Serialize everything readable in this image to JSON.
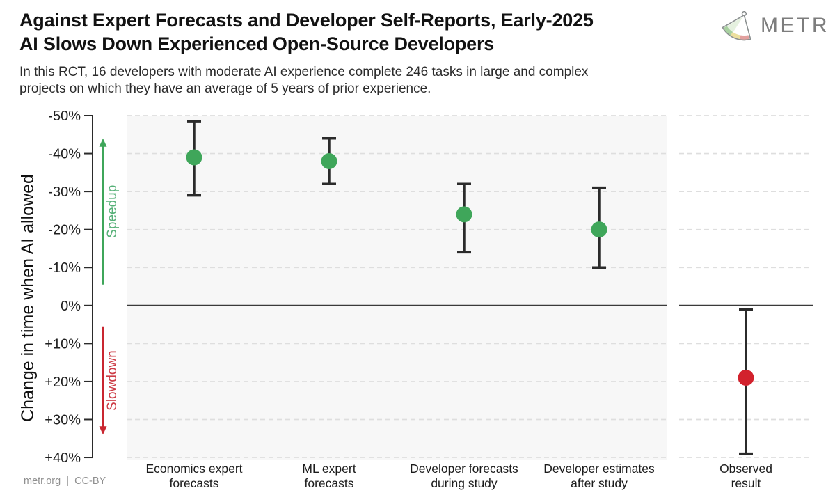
{
  "header": {
    "title_lines": [
      "Against Expert Forecasts and Developer Self-Reports, Early-2025",
      "AI Slows Down Experienced Open-Source Developers"
    ],
    "subtitle_lines": [
      "In this RCT, 16 developers with moderate AI experience complete 246 tasks in large and complex",
      "projects on which they have an average of 5 years of prior experience."
    ],
    "logo_text": "METR"
  },
  "footer": {
    "credit": "metr.org  |  CC-BY"
  },
  "colors": {
    "green": "#3fa65a",
    "red": "#d2222d",
    "speedup_text": "#55b077",
    "slowdown_text": "#cd3d47",
    "errorbar": "#2b2b2b",
    "panel_bg": "#f7f7f7",
    "gridline": "#dedede",
    "zero_line": "#3a3a3a"
  },
  "chart_data": {
    "type": "scatter",
    "title": "",
    "ylabel": "Change in time when AI allowed",
    "xlabel": "",
    "y_axis": {
      "inverted": true,
      "ylim": [
        -50,
        40
      ],
      "grid": true,
      "ticks": [
        {
          "label": "-50%",
          "value": -50
        },
        {
          "label": "-40%",
          "value": -40
        },
        {
          "label": "-30%",
          "value": -30
        },
        {
          "label": "-20%",
          "value": -20
        },
        {
          "label": "-10%",
          "value": -10
        },
        {
          "label": "0%",
          "value": 0
        },
        {
          "label": "+10%",
          "value": 10
        },
        {
          "label": "+20%",
          "value": 20
        },
        {
          "label": "+30%",
          "value": 30
        },
        {
          "label": "+40%",
          "value": 40
        }
      ]
    },
    "panels": [
      {
        "id": "forecasts",
        "bg": "#f7f7f7"
      },
      {
        "id": "observed",
        "bg": "#ffffff"
      }
    ],
    "annotations": [
      {
        "id": "speedup",
        "label": "Speedup",
        "direction": "up",
        "from": -5.5,
        "to": -44,
        "color": "#3fa65a",
        "text_color": "#55b077"
      },
      {
        "id": "slowdown",
        "label": "Slowdown",
        "direction": "down",
        "from": 5.5,
        "to": 34,
        "color": "#c92630",
        "text_color": "#cd3d47"
      }
    ],
    "points": [
      {
        "panel": 0,
        "label_lines": [
          "Economics expert",
          "forecasts"
        ],
        "value": -39,
        "ci": [
          -48.5,
          -29
        ],
        "color": "#3fa65a"
      },
      {
        "panel": 0,
        "label_lines": [
          "ML expert",
          "forecasts"
        ],
        "value": -38,
        "ci": [
          -44,
          -32
        ],
        "color": "#3fa65a"
      },
      {
        "panel": 0,
        "label_lines": [
          "Developer forecasts",
          "during study"
        ],
        "value": -24,
        "ci": [
          -32,
          -14
        ],
        "color": "#3fa65a"
      },
      {
        "panel": 0,
        "label_lines": [
          "Developer estimates",
          "after study"
        ],
        "value": -20,
        "ci": [
          -31,
          -10
        ],
        "color": "#3fa65a"
      },
      {
        "panel": 1,
        "label_lines": [
          "Observed",
          "result"
        ],
        "value": 19,
        "ci": [
          1,
          39
        ],
        "color": "#d2222d"
      }
    ]
  }
}
